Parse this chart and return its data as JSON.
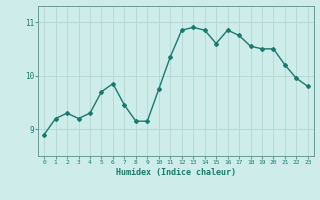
{
  "x": [
    0,
    1,
    2,
    3,
    4,
    5,
    6,
    7,
    8,
    9,
    10,
    11,
    12,
    13,
    14,
    15,
    16,
    17,
    18,
    19,
    20,
    21,
    22,
    23
  ],
  "y": [
    8.9,
    9.2,
    9.3,
    9.2,
    9.3,
    9.7,
    9.85,
    9.45,
    9.15,
    9.15,
    9.75,
    10.35,
    10.85,
    10.9,
    10.85,
    10.6,
    10.85,
    10.75,
    10.55,
    10.5,
    10.5,
    10.2,
    9.95,
    9.8
  ],
  "line_color": "#1a7a6e",
  "marker": "D",
  "markersize": 2,
  "linewidth": 1.0,
  "bg_color": "#cdecea",
  "grid_color": "#b0d8d4",
  "xlabel": "Humidex (Indice chaleur)",
  "xlabel_color": "#1a7a6e",
  "tick_color": "#1a7a6e",
  "axis_color": "#6a9a94",
  "yticks": [
    9,
    10,
    11
  ],
  "ylim": [
    8.5,
    11.3
  ],
  "xlim": [
    -0.5,
    23.5
  ],
  "xticks": [
    0,
    1,
    2,
    3,
    4,
    5,
    6,
    7,
    8,
    9,
    10,
    11,
    12,
    13,
    14,
    15,
    16,
    17,
    18,
    19,
    20,
    21,
    22,
    23
  ]
}
